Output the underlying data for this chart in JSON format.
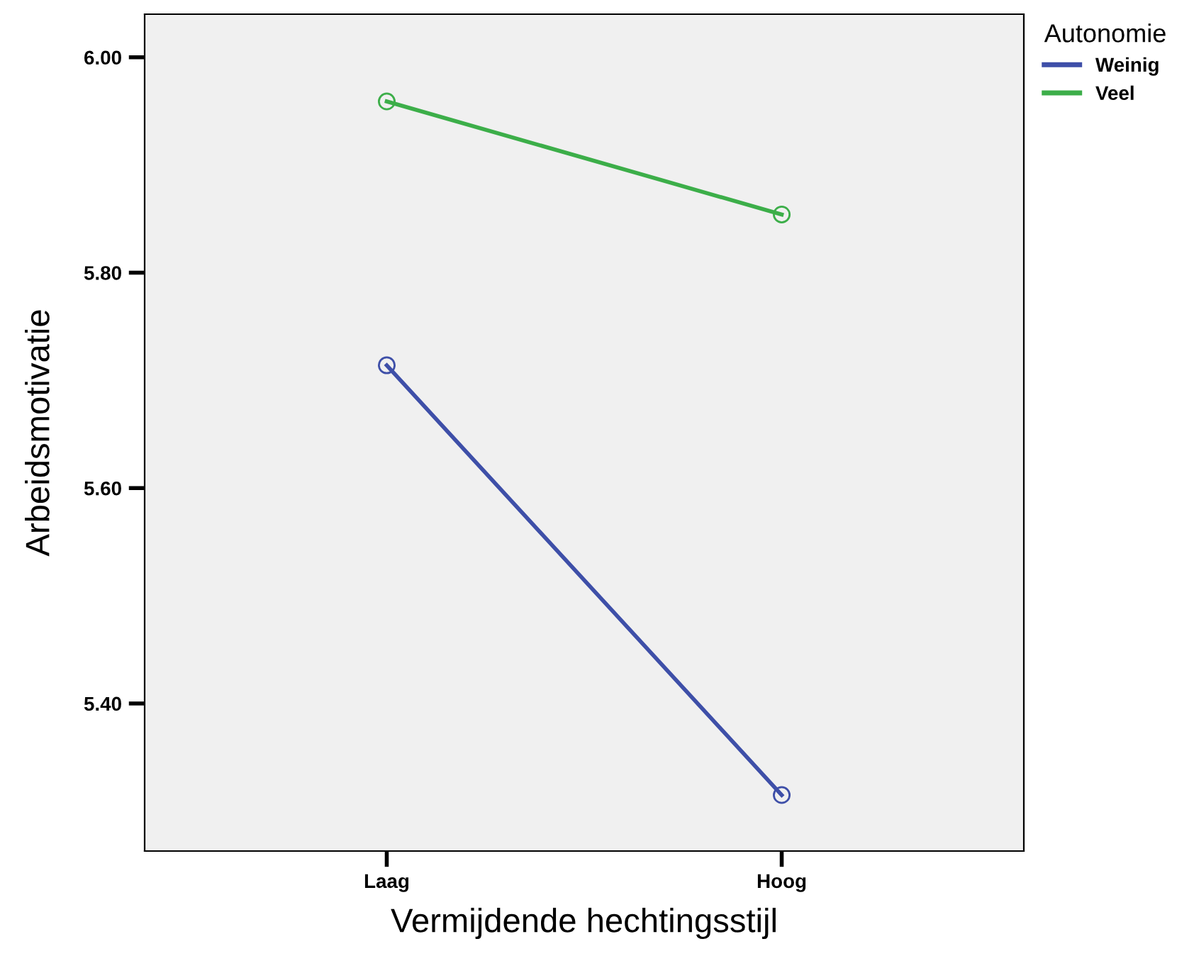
{
  "chart_data": {
    "type": "line",
    "xlabel": "Vermijdende hechtingsstijl",
    "ylabel": "Arbeidsmotivatie",
    "legend_title": "Autonomie",
    "categories": [
      "Laag",
      "Hoog"
    ],
    "series": [
      {
        "name": "Weinig",
        "color": "#3e4fa8",
        "values": [
          5.714,
          5.315
        ]
      },
      {
        "name": "Veel",
        "color": "#3cae49",
        "values": [
          5.959,
          5.854
        ]
      }
    ],
    "ylim": [
      5.263,
      6.04
    ],
    "yticks": [
      {
        "value": 5.4,
        "label": "5.40"
      },
      {
        "value": 5.6,
        "label": "5.60"
      },
      {
        "value": 5.8,
        "label": "5.80"
      },
      {
        "value": 6.0,
        "label": "6.00"
      }
    ],
    "marker": "circle",
    "line_style": "solid",
    "legend": "top right",
    "grid": false
  }
}
